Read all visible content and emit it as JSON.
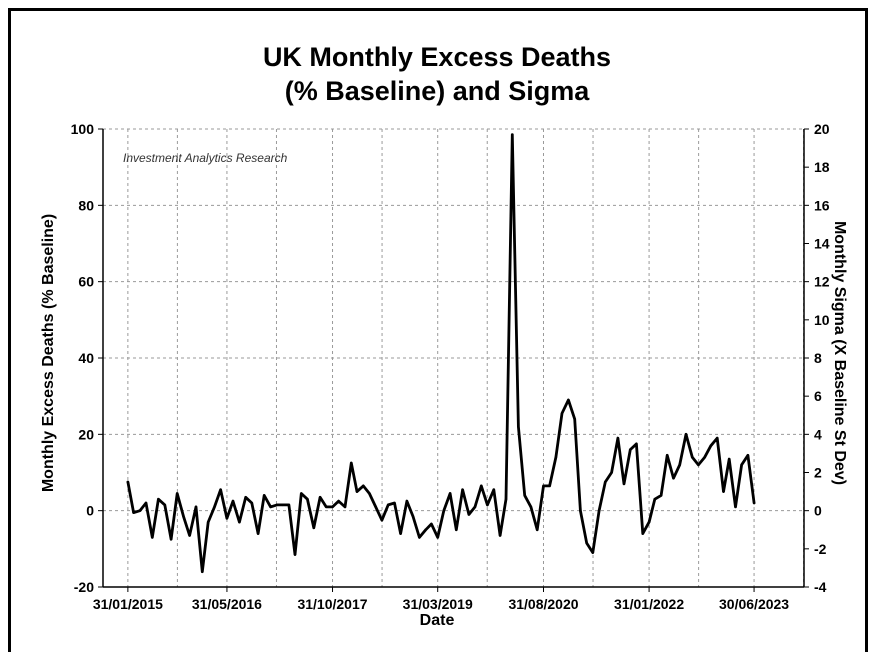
{
  "chart_data": {
    "type": "line",
    "title_lines": [
      "UK Monthly Excess Deaths",
      "(% Baseline) and Sigma"
    ],
    "xlabel": "Date",
    "ylabel": "Monthly Excess Deaths (% Baseline)",
    "y2label": "Monthly Sigma (X Baseline St Dev)",
    "annotation": "Investment Analytics Research",
    "ylim": [
      -20,
      100
    ],
    "y2lim": [
      -4,
      20
    ],
    "xlim": [
      "2014-10-01",
      "2024-03-01"
    ],
    "yticks": [
      -20,
      0,
      20,
      40,
      60,
      80,
      100
    ],
    "y2ticks": [
      -4,
      -2,
      0,
      2,
      4,
      6,
      8,
      10,
      12,
      14,
      16,
      18,
      20
    ],
    "xticks": [
      {
        "label": "31/01/2015",
        "date": "2015-01-31"
      },
      {
        "label": "31/05/2016",
        "date": "2016-05-31"
      },
      {
        "label": "31/10/2017",
        "date": "2017-10-31"
      },
      {
        "label": "31/03/2019",
        "date": "2019-03-31"
      },
      {
        "label": "31/08/2020",
        "date": "2020-08-31"
      },
      {
        "label": "31/01/2022",
        "date": "2022-01-31"
      },
      {
        "label": "30/06/2023",
        "date": "2023-06-30"
      }
    ],
    "grid": true,
    "line_color": "#000000",
    "series": [
      {
        "values": [
          [
            "2015-01-31",
            7.5
          ],
          [
            "2015-02-28",
            -0.5
          ],
          [
            "2015-03-31",
            0.0
          ],
          [
            "2015-04-30",
            2.0
          ],
          [
            "2015-05-31",
            -7.0
          ],
          [
            "2015-06-30",
            3.0
          ],
          [
            "2015-07-31",
            1.5
          ],
          [
            "2015-08-31",
            -7.5
          ],
          [
            "2015-09-30",
            4.5
          ],
          [
            "2015-10-31",
            -1.5
          ],
          [
            "2015-11-30",
            -6.5
          ],
          [
            "2015-12-31",
            1.0
          ],
          [
            "2016-01-31",
            -16.0
          ],
          [
            "2016-02-29",
            -3.0
          ],
          [
            "2016-03-31",
            1.0
          ],
          [
            "2016-04-30",
            5.5
          ],
          [
            "2016-05-31",
            -2.0
          ],
          [
            "2016-06-30",
            2.5
          ],
          [
            "2016-07-31",
            -3.0
          ],
          [
            "2016-08-31",
            3.5
          ],
          [
            "2016-09-30",
            2.0
          ],
          [
            "2016-10-31",
            -6.0
          ],
          [
            "2016-11-30",
            4.0
          ],
          [
            "2016-12-31",
            1.0
          ],
          [
            "2017-01-31",
            1.5
          ],
          [
            "2017-02-28",
            1.5
          ],
          [
            "2017-03-31",
            1.5
          ],
          [
            "2017-04-30",
            -11.5
          ],
          [
            "2017-05-31",
            4.5
          ],
          [
            "2017-06-30",
            3.0
          ],
          [
            "2017-07-31",
            -4.5
          ],
          [
            "2017-08-31",
            3.5
          ],
          [
            "2017-09-30",
            1.0
          ],
          [
            "2017-10-31",
            1.0
          ],
          [
            "2017-11-30",
            2.5
          ],
          [
            "2017-12-31",
            1.0
          ],
          [
            "2018-01-31",
            12.5
          ],
          [
            "2018-02-28",
            5.0
          ],
          [
            "2018-03-31",
            6.5
          ],
          [
            "2018-04-30",
            4.5
          ],
          [
            "2018-05-31",
            1.0
          ],
          [
            "2018-06-30",
            -2.5
          ],
          [
            "2018-07-31",
            1.5
          ],
          [
            "2018-08-31",
            2.0
          ],
          [
            "2018-09-30",
            -6.0
          ],
          [
            "2018-10-31",
            2.5
          ],
          [
            "2018-11-30",
            -1.5
          ],
          [
            "2018-12-31",
            -7.0
          ],
          [
            "2019-01-31",
            -5.0
          ],
          [
            "2019-02-28",
            -3.5
          ],
          [
            "2019-03-31",
            -7.0
          ],
          [
            "2019-04-30",
            0.0
          ],
          [
            "2019-05-31",
            4.5
          ],
          [
            "2019-06-30",
            -5.0
          ],
          [
            "2019-07-31",
            5.5
          ],
          [
            "2019-08-31",
            -1.0
          ],
          [
            "2019-09-30",
            1.0
          ],
          [
            "2019-10-31",
            6.5
          ],
          [
            "2019-11-30",
            1.5
          ],
          [
            "2019-12-31",
            5.5
          ],
          [
            "2020-01-31",
            -6.5
          ],
          [
            "2020-02-29",
            3.0
          ],
          [
            "2020-03-31",
            98.5
          ],
          [
            "2020-04-30",
            22.0
          ],
          [
            "2020-05-31",
            4.0
          ],
          [
            "2020-06-30",
            1.0
          ],
          [
            "2020-07-31",
            -5.0
          ],
          [
            "2020-08-31",
            6.5
          ],
          [
            "2020-09-30",
            6.5
          ],
          [
            "2020-10-31",
            14.0
          ],
          [
            "2020-11-30",
            25.5
          ],
          [
            "2020-12-31",
            29.0
          ],
          [
            "2021-01-31",
            24.0
          ],
          [
            "2021-02-28",
            0.0
          ],
          [
            "2021-03-31",
            -8.5
          ],
          [
            "2021-04-30",
            -11.0
          ],
          [
            "2021-05-31",
            0.0
          ],
          [
            "2021-06-30",
            7.5
          ],
          [
            "2021-07-31",
            10.0
          ],
          [
            "2021-08-31",
            19.0
          ],
          [
            "2021-09-30",
            7.0
          ],
          [
            "2021-10-31",
            16.0
          ],
          [
            "2021-11-30",
            17.5
          ],
          [
            "2021-12-31",
            -6.0
          ],
          [
            "2022-01-31",
            -3.0
          ],
          [
            "2022-02-28",
            3.0
          ],
          [
            "2022-03-31",
            4.0
          ],
          [
            "2022-04-30",
            14.5
          ],
          [
            "2022-05-31",
            8.5
          ],
          [
            "2022-06-30",
            12.0
          ],
          [
            "2022-07-31",
            20.0
          ],
          [
            "2022-08-31",
            14.0
          ],
          [
            "2022-09-30",
            12.0
          ],
          [
            "2022-10-31",
            14.0
          ],
          [
            "2022-11-30",
            17.0
          ],
          [
            "2022-12-31",
            19.0
          ],
          [
            "2023-01-31",
            5.0
          ],
          [
            "2023-02-28",
            13.5
          ],
          [
            "2023-03-31",
            1.0
          ],
          [
            "2023-04-30",
            12.0
          ],
          [
            "2023-05-31",
            14.5
          ],
          [
            "2023-06-30",
            2.0
          ]
        ]
      }
    ]
  }
}
